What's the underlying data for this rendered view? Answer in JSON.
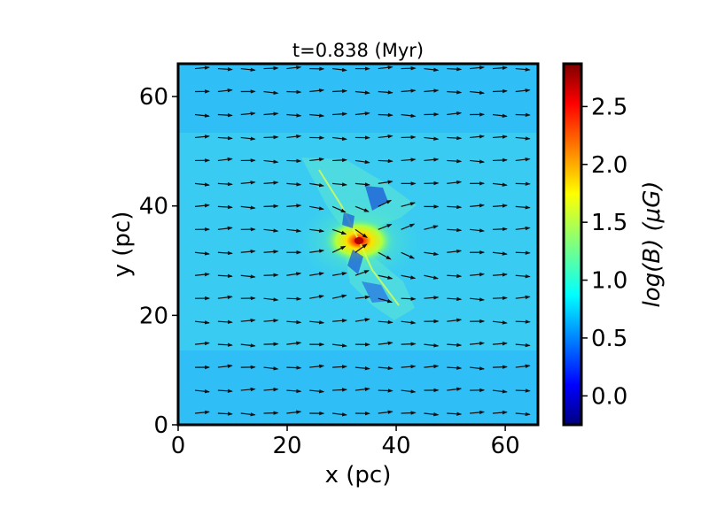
{
  "chart_data": {
    "type": "heatmap",
    "title": "t=0.838 (Myr)",
    "xlabel": "x (pc)",
    "ylabel": "y (pc)",
    "xlim": [
      0,
      66
    ],
    "ylim": [
      0,
      66
    ],
    "x_ticks": [
      0,
      20,
      40,
      60
    ],
    "y_ticks": [
      0,
      20,
      40,
      60
    ],
    "grid": false,
    "colormap": "jet",
    "colorbar": {
      "label": "log(B) (μG)",
      "range": [
        -0.25,
        2.87
      ],
      "ticks": [
        "0.0",
        "0.5",
        "1.0",
        "1.5",
        "2.0",
        "2.5"
      ],
      "tick_values": [
        0.0,
        0.5,
        1.0,
        1.5,
        2.0,
        2.5
      ],
      "position": "right"
    },
    "field_summary": {
      "background_logB": 0.8,
      "horizontal_band_logB": 1.0,
      "horizontal_band_y": [
        14,
        52
      ],
      "filament_peak_logB": 2.85,
      "filament_peak_xy": [
        33.5,
        33.5
      ]
    },
    "vector_field": {
      "description": "magnetic field direction arrows",
      "dominant_direction": "+x",
      "grid_spacing_pc": 4.2
    }
  }
}
